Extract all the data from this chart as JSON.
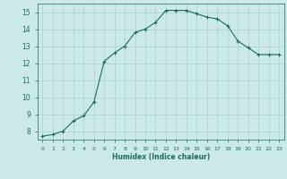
{
  "x": [
    0,
    1,
    2,
    3,
    4,
    5,
    6,
    7,
    8,
    9,
    10,
    11,
    12,
    13,
    14,
    15,
    16,
    17,
    18,
    19,
    20,
    21,
    22,
    23
  ],
  "y": [
    7.7,
    7.8,
    8.0,
    8.6,
    8.9,
    9.7,
    12.1,
    12.6,
    13.0,
    13.8,
    14.0,
    14.4,
    15.1,
    15.1,
    15.1,
    14.9,
    14.7,
    14.6,
    14.2,
    13.3,
    12.9,
    12.5,
    12.5,
    12.5
  ],
  "xlabel": "Humidex (Indice chaleur)",
  "ylim": [
    7.5,
    15.5
  ],
  "xlim": [
    -0.5,
    23.5
  ],
  "yticks": [
    8,
    9,
    10,
    11,
    12,
    13,
    14,
    15
  ],
  "xticks": [
    0,
    1,
    2,
    3,
    4,
    5,
    6,
    7,
    8,
    9,
    10,
    11,
    12,
    13,
    14,
    15,
    16,
    17,
    18,
    19,
    20,
    21,
    22,
    23
  ],
  "line_color": "#1a6b5a",
  "marker": "+",
  "bg_color": "#cce9e9",
  "grid_color": "#aed4d4"
}
